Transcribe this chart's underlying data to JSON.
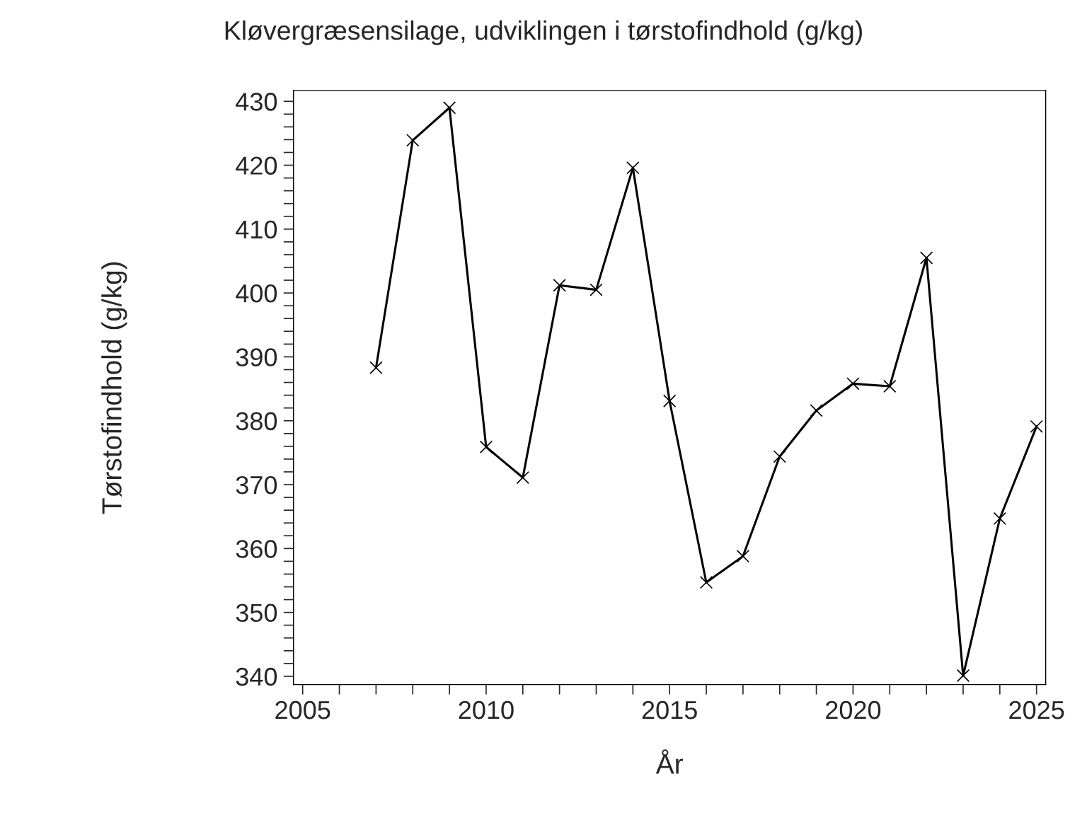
{
  "chart_data": {
    "type": "line",
    "title": "Kløvergræsensilage, udviklingen i tørstofindhold (g/kg)",
    "xlabel": "År",
    "ylabel": "Tørstofindhold (g/kg)",
    "x": [
      2007,
      2008,
      2009,
      2010,
      2011,
      2012,
      2013,
      2014,
      2015,
      2016,
      2017,
      2018,
      2019,
      2020,
      2021,
      2022,
      2023,
      2024,
      2025
    ],
    "series": [
      {
        "color": "#000000",
        "values": [
          388.3,
          423.9,
          429.0,
          375.9,
          371.1,
          401.2,
          400.5,
          419.6,
          383.1,
          354.7,
          358.8,
          374.4,
          381.6,
          385.8,
          385.4,
          405.5,
          340.1,
          364.7,
          379.1
        ]
      }
    ],
    "marker": "cross",
    "line_style": "solid",
    "grid": false,
    "legend": false,
    "xlim": [
      2004.75,
      2025.25
    ],
    "ylim": [
      338.7,
      431.7
    ],
    "xticks": [
      2005,
      {
        "value": 2006,
        "label": null
      },
      {
        "value": 2007,
        "label": null
      },
      {
        "value": 2008,
        "label": null
      },
      {
        "value": 2009,
        "label": null
      },
      2010,
      {
        "value": 2011,
        "label": null
      },
      {
        "value": 2012,
        "label": null
      },
      {
        "value": 2013,
        "label": null
      },
      {
        "value": 2014,
        "label": null
      },
      2015,
      {
        "value": 2016,
        "label": null
      },
      {
        "value": 2017,
        "label": null
      },
      {
        "value": 2018,
        "label": null
      },
      {
        "value": 2019,
        "label": null
      },
      2020,
      {
        "value": 2021,
        "label": null
      },
      {
        "value": 2022,
        "label": null
      },
      {
        "value": 2023,
        "label": null
      },
      {
        "value": 2024,
        "label": null
      },
      2025
    ],
    "yticks": [
      340,
      {
        "value": 342,
        "label": null
      },
      {
        "value": 344,
        "label": null
      },
      {
        "value": 346,
        "label": null
      },
      {
        "value": 348,
        "label": null
      },
      350,
      {
        "value": 352,
        "label": null
      },
      {
        "value": 354,
        "label": null
      },
      {
        "value": 356,
        "label": null
      },
      {
        "value": 358,
        "label": null
      },
      360,
      {
        "value": 362,
        "label": null
      },
      {
        "value": 364,
        "label": null
      },
      {
        "value": 366,
        "label": null
      },
      {
        "value": 368,
        "label": null
      },
      370,
      {
        "value": 372,
        "label": null
      },
      {
        "value": 374,
        "label": null
      },
      {
        "value": 376,
        "label": null
      },
      {
        "value": 378,
        "label": null
      },
      380,
      {
        "value": 382,
        "label": null
      },
      {
        "value": 384,
        "label": null
      },
      {
        "value": 386,
        "label": null
      },
      {
        "value": 388,
        "label": null
      },
      390,
      {
        "value": 392,
        "label": null
      },
      {
        "value": 394,
        "label": null
      },
      {
        "value": 396,
        "label": null
      },
      {
        "value": 398,
        "label": null
      },
      400,
      {
        "value": 402,
        "label": null
      },
      {
        "value": 404,
        "label": null
      },
      {
        "value": 406,
        "label": null
      },
      {
        "value": 408,
        "label": null
      },
      410,
      {
        "value": 412,
        "label": null
      },
      {
        "value": 414,
        "label": null
      },
      {
        "value": 416,
        "label": null
      },
      {
        "value": 418,
        "label": null
      },
      420,
      {
        "value": 422,
        "label": null
      },
      {
        "value": 424,
        "label": null
      },
      {
        "value": 426,
        "label": null
      },
      {
        "value": 428,
        "label": null
      },
      430
    ]
  }
}
